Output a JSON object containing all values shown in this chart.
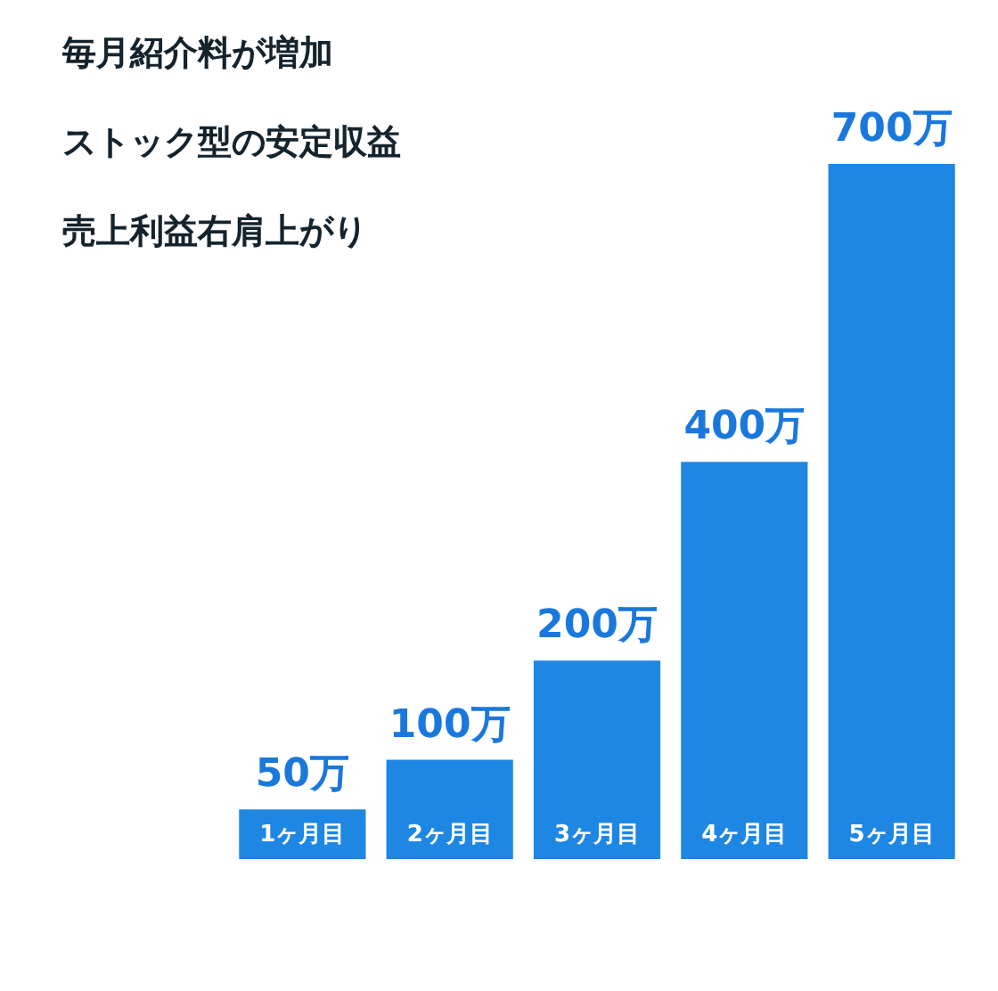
{
  "chart_data": {
    "type": "bar",
    "categories": [
      "1ヶ月目",
      "2ヶ月目",
      "3ヶ月目",
      "4ヶ月目",
      "5ヶ月目"
    ],
    "values": [
      50,
      100,
      200,
      400,
      700
    ],
    "value_labels": [
      "50万",
      "100万",
      "200万",
      "400万",
      "700万"
    ],
    "color": "#1e86e3",
    "annotations": [
      "毎月紹介料が増加",
      "ストック型の安定収益",
      "売上利益右肩上がり"
    ]
  }
}
